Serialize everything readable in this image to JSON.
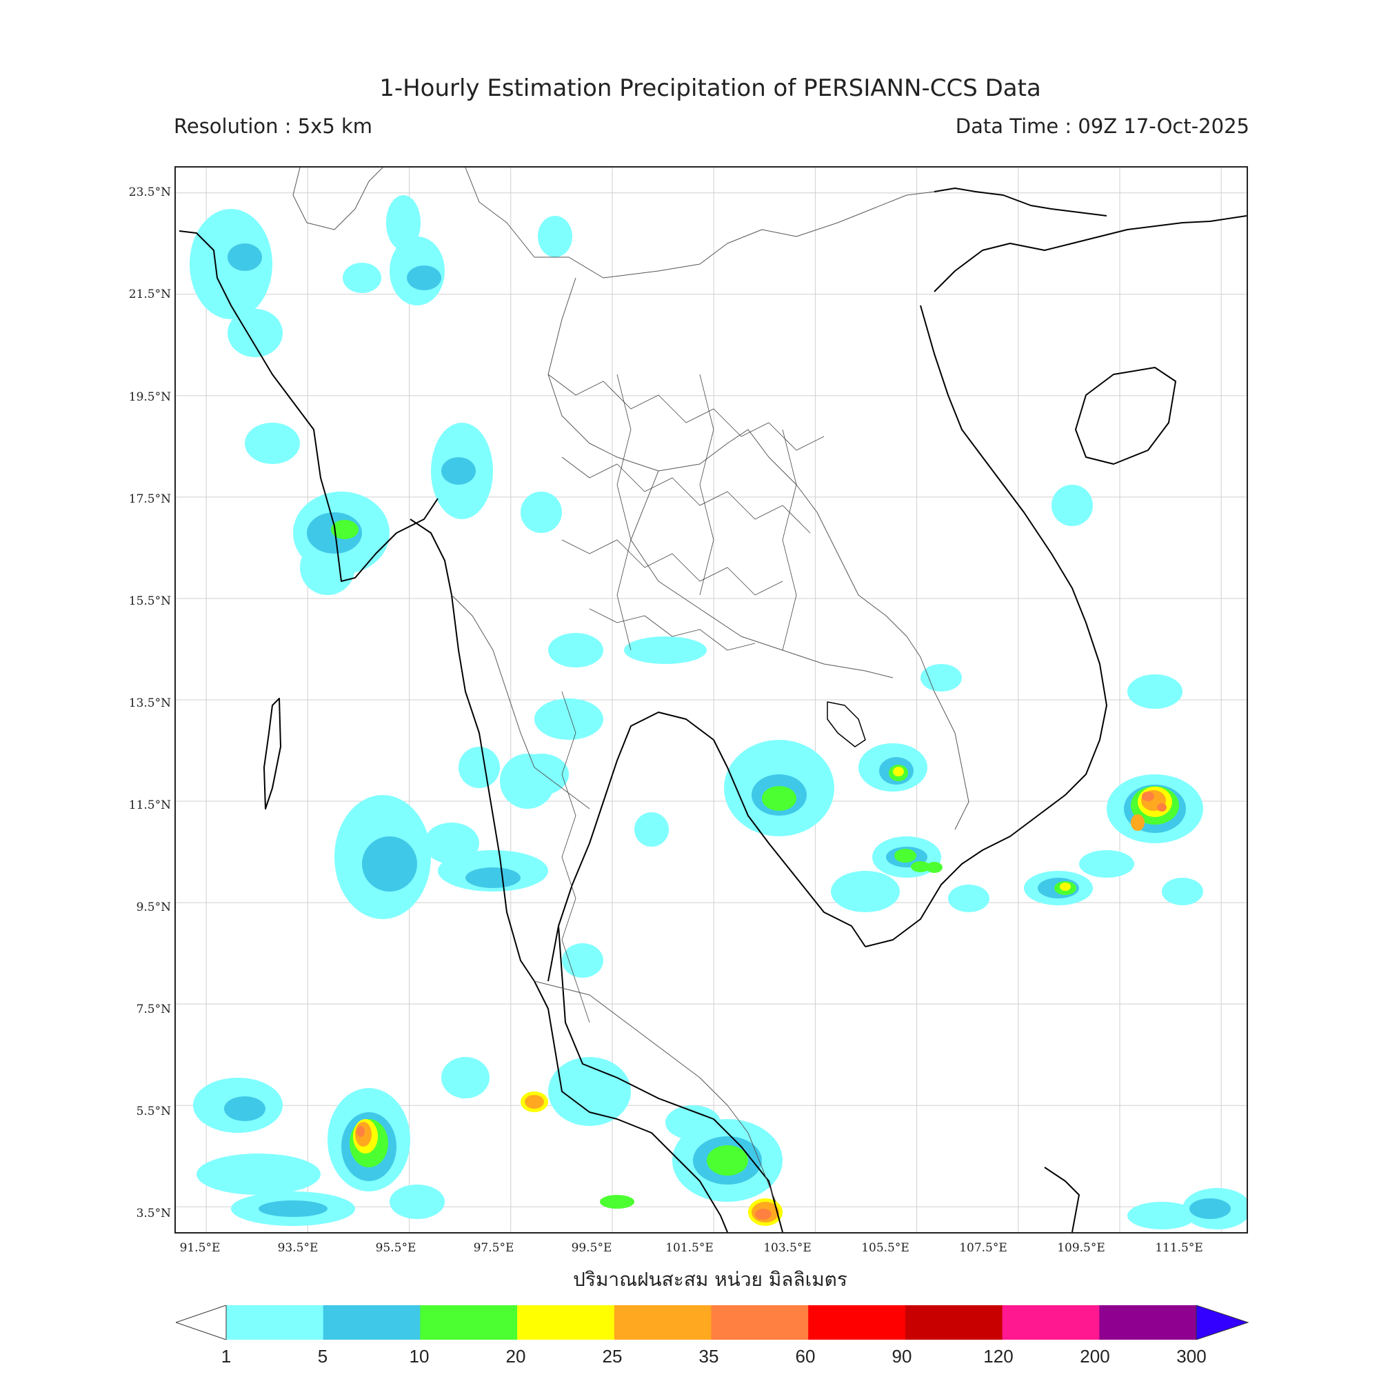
{
  "header": {
    "title": "1-Hourly Estimation Precipitation of PERSIANN-CCS Data",
    "resolution": "Resolution : 5x5 km",
    "data_time": "Data Time : 09Z 17-Oct-2025"
  },
  "map": {
    "lat_labels": [
      "23.5°N",
      "21.5°N",
      "19.5°N",
      "17.5°N",
      "15.5°N",
      "13.5°N",
      "11.5°N",
      "9.5°N",
      "7.5°N",
      "5.5°N",
      "3.5°N"
    ],
    "lon_labels": [
      "91.5°E",
      "93.5°E",
      "95.5°E",
      "97.5°E",
      "99.5°E",
      "101.5°E",
      "103.5°E",
      "105.5°E",
      "107.5°E",
      "109.5°E",
      "111.5°E"
    ],
    "lon_range": [
      90.9,
      112.0
    ],
    "lat_range": [
      3.0,
      24.0
    ]
  },
  "legend": {
    "unit_label": "ปริมาณฝนสะสม หน่วย มิลลิเมตร",
    "ticks": [
      "1",
      "5",
      "10",
      "20",
      "25",
      "35",
      "60",
      "90",
      "120",
      "200",
      "300"
    ],
    "colors": [
      "#80ffff",
      "#40c8e8",
      "#4cff30",
      "#ffff00",
      "#ffa820",
      "#ff8040",
      "#ff0000",
      "#c80000",
      "#ff1890",
      "#900090"
    ],
    "extend_max_color": "#3300ff"
  }
}
